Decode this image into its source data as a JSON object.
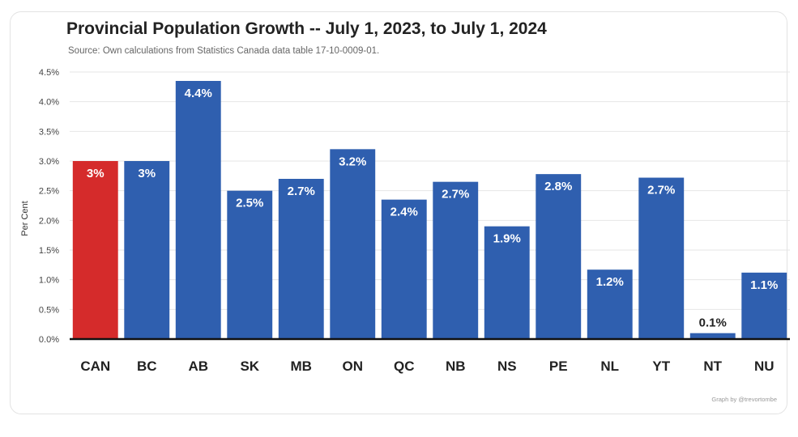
{
  "chart_data": {
    "type": "bar",
    "title": "Provincial Population Growth -- July 1, 2023, to July 1, 2024",
    "subtitle": "Source: Own calculations from Statistics Canada data table 17-10-0009-01.",
    "ylabel": "Per Cent",
    "xlabel": "",
    "categories": [
      "CAN",
      "BC",
      "AB",
      "SK",
      "MB",
      "ON",
      "QC",
      "NB",
      "NS",
      "PE",
      "NL",
      "YT",
      "NT",
      "NU"
    ],
    "values": [
      3.0,
      3.0,
      4.35,
      2.5,
      2.7,
      3.2,
      2.35,
      2.65,
      1.9,
      2.78,
      1.17,
      2.72,
      0.1,
      1.12
    ],
    "data_labels": [
      "3%",
      "3%",
      "4.4%",
      "2.5%",
      "2.7%",
      "3.2%",
      "2.4%",
      "2.7%",
      "1.9%",
      "2.8%",
      "1.2%",
      "2.7%",
      "0.1%",
      "1.1%"
    ],
    "ylim": [
      0,
      4.5
    ],
    "yticks": [
      0,
      0.5,
      1.0,
      1.5,
      2.0,
      2.5,
      3.0,
      3.5,
      4.0,
      4.5
    ],
    "ytick_labels": [
      "0.0%",
      "0.5%",
      "1.0%",
      "1.5%",
      "2.0%",
      "2.5%",
      "3.0%",
      "3.5%",
      "4.0%",
      "4.5%"
    ],
    "grid": true,
    "colors": {
      "highlight": "#d52b2b",
      "bar": "#2f5faf",
      "label_inside": "#ffffff",
      "label_outside": "#222222",
      "grid": "#e6e6e6",
      "baseline": "#111111"
    },
    "highlight_category": "CAN",
    "credit": "Graph by @trevortombe"
  }
}
